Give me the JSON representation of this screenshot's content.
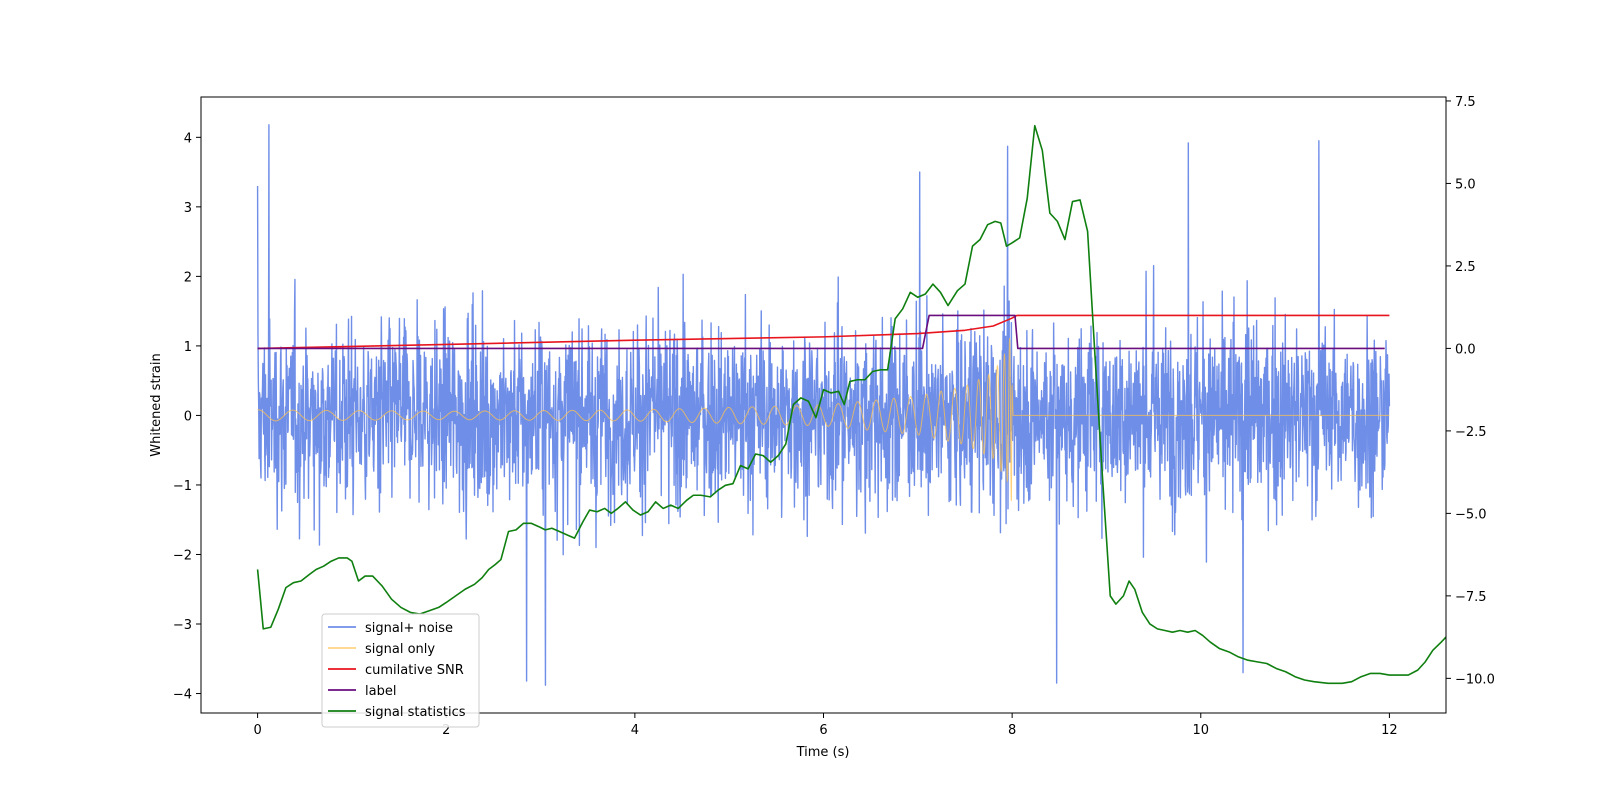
{
  "chart_data": {
    "type": "line",
    "title": "",
    "xlabel": "Time (s)",
    "ylabel": "Whitened strain",
    "y2label": "",
    "xlim": [
      -0.6,
      12.6
    ],
    "ylim": [
      -4.28,
      4.58
    ],
    "y2lim": [
      -11.05,
      7.62
    ],
    "x_ticks": [
      0,
      2,
      4,
      6,
      8,
      10,
      12
    ],
    "y_ticks": [
      -4,
      -3,
      -2,
      -1,
      0,
      1,
      2,
      3,
      4
    ],
    "y2_ticks": [
      -10.0,
      -7.5,
      -5.0,
      -2.5,
      0.0,
      2.5,
      5.0,
      7.5
    ],
    "x_tick_labels": [
      "0",
      "2",
      "4",
      "6",
      "8",
      "10",
      "12"
    ],
    "y_tick_labels": [
      "−4",
      "−3",
      "−2",
      "−1",
      "0",
      "1",
      "2",
      "3",
      "4"
    ],
    "y2_tick_labels": [
      "−10.0",
      "−7.5",
      "−5.0",
      "−2.5",
      "0.0",
      "2.5",
      "5.0",
      "7.5"
    ],
    "grid": false,
    "legend_position": "lower-left",
    "series": [
      {
        "name": "signal+ noise",
        "axis": "left",
        "color": "#6f8ee8",
        "style": "dense-noise",
        "x_range": [
          0,
          12
        ],
        "typical_amplitude": [
          -1.7,
          1.8
        ],
        "extreme_values": [
          {
            "x": 0.12,
            "y": 4.18
          },
          {
            "x": 0.0,
            "y": 3.3
          },
          {
            "x": 3.05,
            "y": -3.88
          },
          {
            "x": 2.85,
            "y": -3.82
          },
          {
            "x": 7.95,
            "y": 3.87
          },
          {
            "x": 8.47,
            "y": -3.85
          },
          {
            "x": 10.45,
            "y": -3.7
          },
          {
            "x": 9.87,
            "y": 3.92
          },
          {
            "x": 11.25,
            "y": 3.95
          },
          {
            "x": 7.02,
            "y": 3.5
          }
        ]
      },
      {
        "name": "signal only",
        "axis": "left",
        "color": "#ffc14d",
        "style": "chirp",
        "x_range": [
          0,
          12
        ],
        "merger_time": 8.0,
        "envelope": [
          [
            0,
            0.08
          ],
          [
            2,
            0.06
          ],
          [
            4,
            0.08
          ],
          [
            6,
            0.15
          ],
          [
            7,
            0.28
          ],
          [
            7.5,
            0.42
          ],
          [
            7.8,
            0.62
          ],
          [
            7.95,
            0.95
          ],
          [
            8.0,
            1.3
          ]
        ],
        "post_merger_value": 0.0
      },
      {
        "name": "cumilative SNR",
        "axis": "right",
        "color": "#e8151f",
        "points": [
          [
            0,
            0.0
          ],
          [
            2,
            0.12
          ],
          [
            4,
            0.25
          ],
          [
            6,
            0.35
          ],
          [
            7,
            0.45
          ],
          [
            7.5,
            0.55
          ],
          [
            7.8,
            0.68
          ],
          [
            8.0,
            0.92
          ],
          [
            8.05,
            1.0
          ],
          [
            12,
            1.0
          ]
        ]
      },
      {
        "name": "label",
        "axis": "right",
        "color": "#6a0d7e",
        "points": [
          [
            0,
            0.0
          ],
          [
            7.05,
            0.0
          ],
          [
            7.12,
            1.0
          ],
          [
            8.03,
            1.0
          ],
          [
            8.06,
            0.0
          ],
          [
            11.95,
            0.0
          ]
        ]
      },
      {
        "name": "signal statistics",
        "axis": "right",
        "color": "#0f7f0f",
        "points": [
          [
            0,
            -6.7
          ],
          [
            0.06,
            -8.5
          ],
          [
            0.14,
            -8.45
          ],
          [
            0.22,
            -7.9
          ],
          [
            0.3,
            -7.25
          ],
          [
            0.38,
            -7.1
          ],
          [
            0.46,
            -7.05
          ],
          [
            0.55,
            -6.85
          ],
          [
            0.62,
            -6.7
          ],
          [
            0.7,
            -6.6
          ],
          [
            0.78,
            -6.45
          ],
          [
            0.86,
            -6.35
          ],
          [
            0.95,
            -6.35
          ],
          [
            1.0,
            -6.45
          ],
          [
            1.07,
            -7.05
          ],
          [
            1.14,
            -6.9
          ],
          [
            1.22,
            -6.9
          ],
          [
            1.32,
            -7.2
          ],
          [
            1.42,
            -7.6
          ],
          [
            1.52,
            -7.85
          ],
          [
            1.62,
            -8.0
          ],
          [
            1.72,
            -8.05
          ],
          [
            1.82,
            -7.95
          ],
          [
            1.92,
            -7.85
          ],
          [
            2.0,
            -7.7
          ],
          [
            2.1,
            -7.5
          ],
          [
            2.2,
            -7.3
          ],
          [
            2.3,
            -7.15
          ],
          [
            2.38,
            -6.95
          ],
          [
            2.45,
            -6.7
          ],
          [
            2.52,
            -6.55
          ],
          [
            2.58,
            -6.4
          ],
          [
            2.66,
            -5.55
          ],
          [
            2.74,
            -5.5
          ],
          [
            2.82,
            -5.3
          ],
          [
            2.9,
            -5.3
          ],
          [
            2.98,
            -5.4
          ],
          [
            3.05,
            -5.5
          ],
          [
            3.12,
            -5.45
          ],
          [
            3.2,
            -5.55
          ],
          [
            3.28,
            -5.65
          ],
          [
            3.36,
            -5.75
          ],
          [
            3.45,
            -5.25
          ],
          [
            3.52,
            -4.9
          ],
          [
            3.6,
            -4.95
          ],
          [
            3.68,
            -4.85
          ],
          [
            3.75,
            -5.0
          ],
          [
            3.82,
            -4.85
          ],
          [
            3.9,
            -4.65
          ],
          [
            3.98,
            -4.9
          ],
          [
            4.06,
            -5.05
          ],
          [
            4.14,
            -4.95
          ],
          [
            4.22,
            -4.65
          ],
          [
            4.3,
            -4.85
          ],
          [
            4.38,
            -4.75
          ],
          [
            4.46,
            -4.85
          ],
          [
            4.55,
            -4.6
          ],
          [
            4.62,
            -4.45
          ],
          [
            4.7,
            -4.45
          ],
          [
            4.8,
            -4.5
          ],
          [
            4.88,
            -4.3
          ],
          [
            4.96,
            -4.15
          ],
          [
            5.04,
            -4.1
          ],
          [
            5.12,
            -3.55
          ],
          [
            5.2,
            -3.65
          ],
          [
            5.28,
            -3.2
          ],
          [
            5.36,
            -3.25
          ],
          [
            5.44,
            -3.45
          ],
          [
            5.52,
            -3.25
          ],
          [
            5.6,
            -2.9
          ],
          [
            5.68,
            -1.7
          ],
          [
            5.76,
            -1.5
          ],
          [
            5.84,
            -1.6
          ],
          [
            5.92,
            -2.1
          ],
          [
            6.0,
            -1.25
          ],
          [
            6.08,
            -1.35
          ],
          [
            6.16,
            -1.3
          ],
          [
            6.22,
            -1.7
          ],
          [
            6.28,
            -1.0
          ],
          [
            6.36,
            -0.95
          ],
          [
            6.44,
            -0.95
          ],
          [
            6.52,
            -0.7
          ],
          [
            6.6,
            -0.65
          ],
          [
            6.68,
            -0.65
          ],
          [
            6.76,
            0.9
          ],
          [
            6.84,
            1.2
          ],
          [
            6.92,
            1.7
          ],
          [
            7.0,
            1.55
          ],
          [
            7.08,
            1.65
          ],
          [
            7.16,
            1.95
          ],
          [
            7.24,
            1.7
          ],
          [
            7.32,
            1.3
          ],
          [
            7.42,
            1.75
          ],
          [
            7.5,
            1.95
          ],
          [
            7.58,
            3.1
          ],
          [
            7.66,
            3.3
          ],
          [
            7.74,
            3.75
          ],
          [
            7.82,
            3.85
          ],
          [
            7.88,
            3.8
          ],
          [
            7.94,
            3.1
          ],
          [
            8.0,
            3.2
          ],
          [
            8.08,
            3.35
          ],
          [
            8.16,
            4.55
          ],
          [
            8.24,
            6.75
          ],
          [
            8.32,
            6.0
          ],
          [
            8.4,
            4.1
          ],
          [
            8.48,
            3.85
          ],
          [
            8.56,
            3.3
          ],
          [
            8.64,
            4.45
          ],
          [
            8.72,
            4.5
          ],
          [
            8.8,
            3.55
          ],
          [
            8.88,
            -0.3
          ],
          [
            8.96,
            -4.0
          ],
          [
            9.04,
            -7.5
          ],
          [
            9.1,
            -7.75
          ],
          [
            9.18,
            -7.5
          ],
          [
            9.24,
            -7.05
          ],
          [
            9.3,
            -7.3
          ],
          [
            9.38,
            -8.0
          ],
          [
            9.46,
            -8.35
          ],
          [
            9.54,
            -8.5
          ],
          [
            9.62,
            -8.55
          ],
          [
            9.7,
            -8.6
          ],
          [
            9.78,
            -8.55
          ],
          [
            9.86,
            -8.6
          ],
          [
            9.94,
            -8.55
          ],
          [
            10.02,
            -8.7
          ],
          [
            10.1,
            -8.9
          ],
          [
            10.2,
            -9.1
          ],
          [
            10.3,
            -9.2
          ],
          [
            10.4,
            -9.35
          ],
          [
            10.5,
            -9.45
          ],
          [
            10.6,
            -9.5
          ],
          [
            10.7,
            -9.55
          ],
          [
            10.8,
            -9.7
          ],
          [
            10.9,
            -9.8
          ],
          [
            11.0,
            -9.95
          ],
          [
            11.1,
            -10.05
          ],
          [
            11.2,
            -10.1
          ],
          [
            11.35,
            -10.15
          ],
          [
            11.5,
            -10.15
          ],
          [
            11.6,
            -10.1
          ],
          [
            11.7,
            -9.95
          ],
          [
            11.8,
            -9.85
          ],
          [
            11.9,
            -9.85
          ],
          [
            12.0,
            -9.9
          ],
          [
            12.1,
            -9.9
          ],
          [
            12.2,
            -9.9
          ],
          [
            12.3,
            -9.75
          ],
          [
            12.38,
            -9.5
          ],
          [
            12.46,
            -9.15
          ],
          [
            12.55,
            -8.9
          ],
          [
            12.6,
            -8.75
          ],
          [
            12.64,
            -8.6
          ]
        ]
      }
    ]
  }
}
